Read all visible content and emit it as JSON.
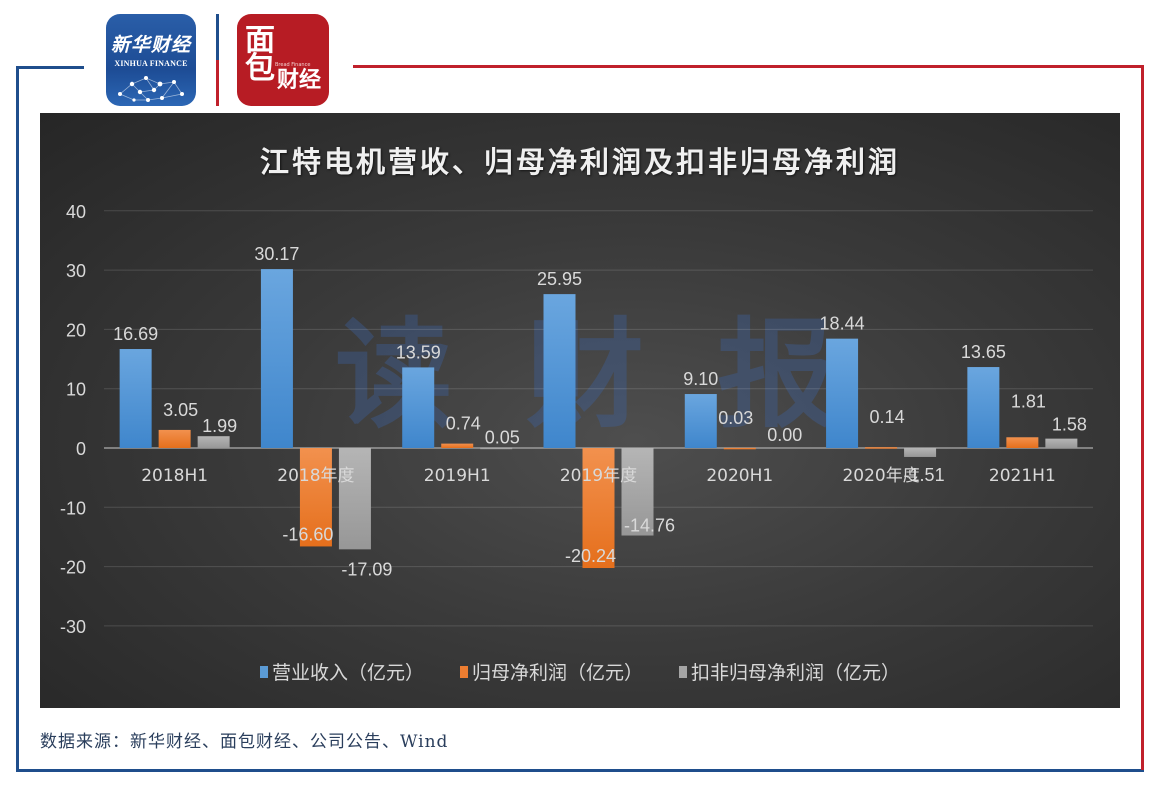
{
  "logos": {
    "xinhua": {
      "cn": "新华财经",
      "en": "XINHUA FINANCE"
    },
    "bread": {
      "top_char": "面",
      "bottom_char": "包",
      "cn": "财经",
      "en": "Bread Finance"
    }
  },
  "colors": {
    "frame_blue": "#1f4e8c",
    "frame_red": "#c0202b",
    "revenue": "#5b9bd5",
    "net_profit": "#ed7d31",
    "deducted_net_profit": "#a5a5a5",
    "watermark": "#3c64aa"
  },
  "watermark": [
    "读",
    "财",
    "报"
  ],
  "source_text": "数据来源：新华财经、面包财经、公司公告、Wind",
  "chart_data": {
    "type": "bar",
    "title": "江特电机营收、归母净利润及扣非归母净利润",
    "xlabel": "",
    "ylabel": "",
    "ylim": [
      -30,
      40
    ],
    "yticks": [
      40,
      30,
      20,
      10,
      0,
      -10,
      -20,
      -30
    ],
    "grid": true,
    "legend_position": "bottom",
    "categories": [
      "2018H1",
      "2018年度",
      "2019H1",
      "2019年度",
      "2020H1",
      "2020年度",
      "2021H1"
    ],
    "series": [
      {
        "name": "营业收入（亿元）",
        "color": "#5b9bd5",
        "values": [
          16.69,
          30.17,
          13.59,
          25.95,
          9.1,
          18.44,
          13.65
        ],
        "labels": [
          "16.69",
          "30.17",
          "13.59",
          "25.95",
          "9.10",
          "18.44",
          "13.65"
        ]
      },
      {
        "name": "归母净利润（亿元）",
        "color": "#ed7d31",
        "values": [
          3.05,
          -16.6,
          0.74,
          -20.24,
          0.03,
          0.14,
          1.81
        ],
        "labels": [
          "3.05",
          "-16.60",
          "0.74",
          "-20.24",
          "0.03",
          "0.14",
          "1.81"
        ]
      },
      {
        "name": "扣非归母净利润（亿元）",
        "color": "#a5a5a5",
        "values": [
          1.99,
          -17.09,
          0.05,
          -14.76,
          0.0,
          -1.51,
          1.58
        ],
        "labels": [
          "1.99",
          "-17.09",
          "0.05",
          "-14.76",
          "0.00",
          "-1.51",
          "1.58"
        ]
      }
    ]
  }
}
